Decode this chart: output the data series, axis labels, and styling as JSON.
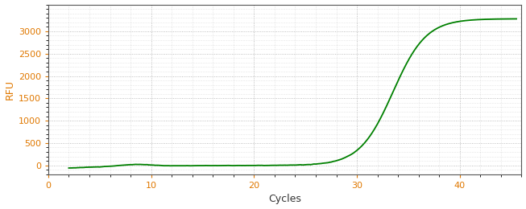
{
  "title": "",
  "xlabel": "Cycles",
  "ylabel": "RFU",
  "xlim": [
    0,
    46
  ],
  "ylim": [
    -200,
    3600
  ],
  "xticks": [
    0,
    10,
    20,
    30,
    40
  ],
  "yticks": [
    0,
    500,
    1000,
    1500,
    2000,
    2500,
    3000
  ],
  "line_color": "#008000",
  "line_width": 1.3,
  "background_color": "#ffffff",
  "grid_color": "#999999",
  "sigmoid_L": 3280,
  "sigmoid_k": 0.62,
  "sigmoid_x0": 33.5,
  "x_start": 2,
  "x_end": 45.5,
  "tick_color": "#e07800",
  "xlabel_color": "#333333",
  "ylabel_color": "#e07800",
  "axis_color": "#555555",
  "figsize": [
    6.53,
    2.6
  ],
  "dpi": 100
}
